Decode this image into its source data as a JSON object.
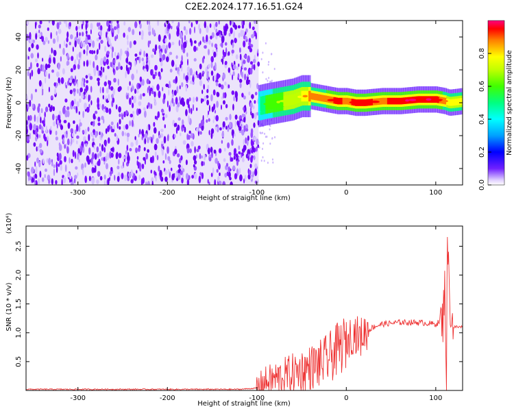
{
  "title": "C2E2.2024.177.16.51.G24",
  "chart_data": [
    {
      "type": "heatmap",
      "xlabel": "Height of straight line (km)",
      "ylabel": "Frequency (Hz)",
      "xlim": [
        -358,
        130
      ],
      "ylim": [
        -50,
        50
      ],
      "xticks": [
        -300,
        -200,
        -100,
        0,
        100
      ],
      "yticks": [
        -40,
        -20,
        0,
        20,
        40
      ],
      "colorbar": {
        "label": "Normalized spectral amplitude",
        "range": [
          0.0,
          1.0
        ],
        "ticks": [
          0.0,
          0.2,
          0.4,
          0.6,
          0.8
        ],
        "colors": [
          "#ffffff",
          "#5500ff",
          "#0000ff",
          "#00a0ff",
          "#00ffff",
          "#00ff80",
          "#40ff00",
          "#c0ff00",
          "#ffff00",
          "#ff8000",
          "#ff0000",
          "#ff0080"
        ]
      },
      "noise_region": {
        "x_range": [
          -358,
          -98
        ],
        "freq_range": [
          -50,
          50
        ],
        "amplitude": 0.05
      },
      "signal_ridge": {
        "x": [
          -98,
          -90,
          -80,
          -70,
          -60,
          -50,
          -40,
          -30,
          -20,
          -10,
          0,
          10,
          20,
          40,
          60,
          80,
          100,
          110,
          115,
          130
        ],
        "frequency": [
          -2,
          -1,
          0,
          1,
          2,
          4,
          4,
          3,
          2,
          1,
          1,
          0,
          0,
          1,
          1,
          2,
          2,
          1,
          0,
          1
        ],
        "peak_amplitude": [
          0.4,
          0.5,
          0.55,
          0.6,
          0.6,
          0.7,
          0.8,
          0.8,
          0.85,
          0.9,
          0.85,
          0.9,
          0.9,
          0.85,
          0.95,
          0.95,
          0.9,
          0.8,
          0.7,
          0.7
        ]
      }
    },
    {
      "type": "line",
      "xlabel": "Height of straight line (km)",
      "ylabel": "SNR (10 * v/v)",
      "y_multiplier": "(x10⁴)",
      "xlim": [
        -358,
        130
      ],
      "ylim": [
        0,
        2.85
      ],
      "xticks": [
        -300,
        -200,
        -100,
        0,
        100
      ],
      "yticks": [
        0.5,
        1.0,
        1.5,
        2.0,
        2.5
      ],
      "line_color": "#ee3333",
      "series": [
        {
          "x": [
            -358,
            -300,
            -200,
            -120,
            -100,
            -90,
            -80,
            -70,
            -60,
            -50,
            -40,
            -30,
            -20,
            -10,
            0,
            5,
            10,
            15,
            20,
            30,
            40,
            60,
            80,
            100,
            105,
            108,
            110,
            112,
            113,
            115,
            118,
            120,
            125,
            130
          ],
          "y": [
            0.02,
            0.02,
            0.02,
            0.02,
            0.04,
            0.15,
            0.2,
            0.25,
            0.3,
            0.35,
            0.4,
            0.45,
            0.55,
            0.7,
            0.85,
            0.95,
            1.0,
            0.9,
            1.0,
            1.1,
            1.15,
            1.18,
            1.18,
            1.15,
            1.2,
            1.2,
            1.9,
            0.2,
            2.85,
            1.7,
            1.2,
            1.1,
            1.1,
            1.1
          ]
        }
      ]
    }
  ]
}
